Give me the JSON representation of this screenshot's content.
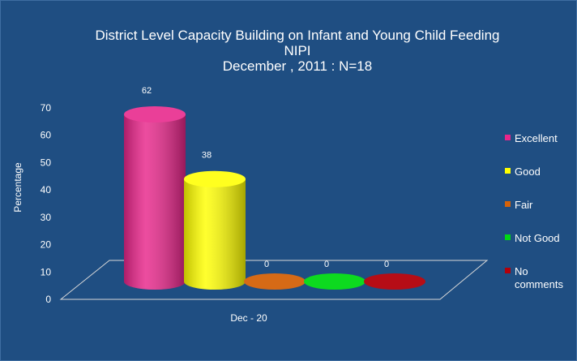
{
  "chart_data": {
    "type": "bar",
    "title": [
      "District Level Capacity Building on Infant and Young Child Feeding",
      "NIPI",
      "December ,  2011 : N=18"
    ],
    "categories": [
      "Dec - 20"
    ],
    "series": [
      {
        "name": "Excellent",
        "values": [
          62
        ],
        "color": "#e8258a"
      },
      {
        "name": "Good",
        "values": [
          38
        ],
        "color": "#ffff00"
      },
      {
        "name": "Fair",
        "values": [
          0
        ],
        "color": "#d4620a"
      },
      {
        "name": "Not Good",
        "values": [
          0
        ],
        "color": "#00d814"
      },
      {
        "name": "No comments",
        "values": [
          0
        ],
        "color": "#b3000a"
      }
    ],
    "ylabel": "Percentage",
    "xlabel": "",
    "ylim": [
      0,
      70
    ],
    "yticks": [
      "0",
      "10",
      "20",
      "30",
      "40",
      "50",
      "60",
      "70"
    ],
    "grid": false,
    "legend": "right",
    "style": "3d-cylinder"
  }
}
